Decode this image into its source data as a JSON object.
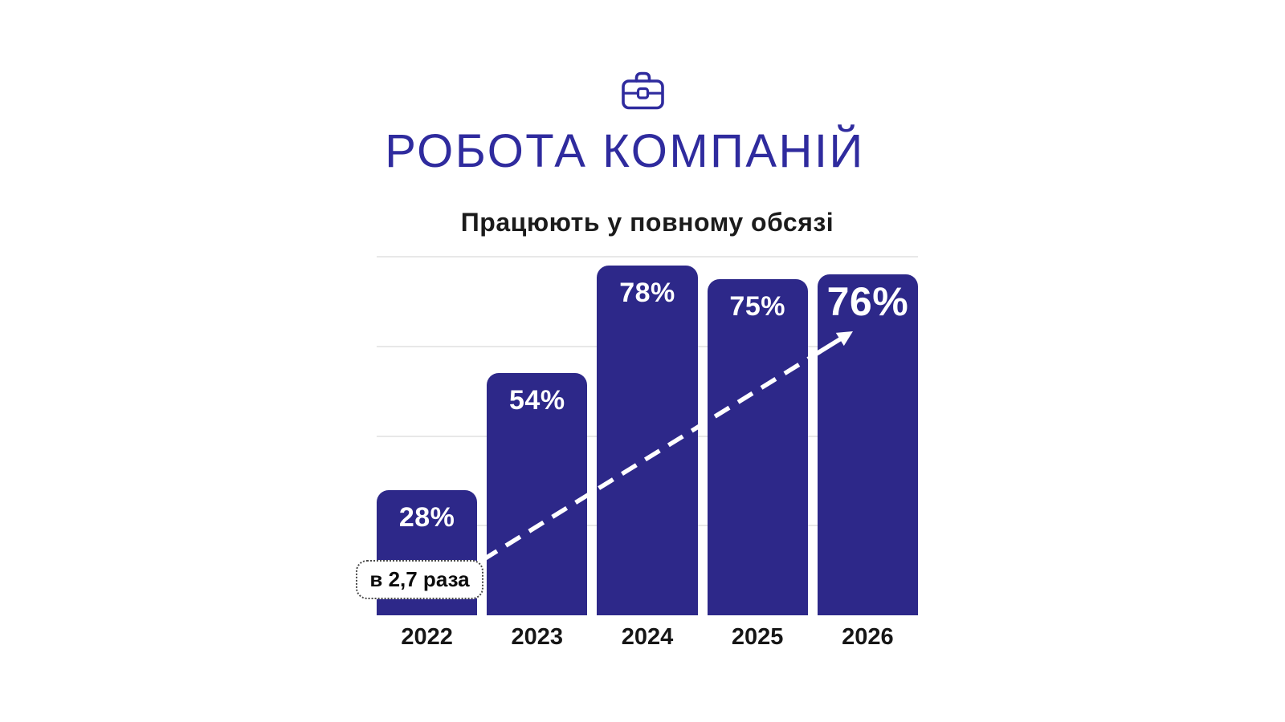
{
  "header": {
    "icon": "briefcase-icon",
    "title": "РОБОТА КОМПАНІЙ",
    "title_color": "#2f2b9e"
  },
  "chart_data": {
    "type": "bar",
    "title": "Працюють у повному обсязі",
    "categories": [
      "2022",
      "2023",
      "2024",
      "2025",
      "2026"
    ],
    "values": [
      28,
      54,
      78,
      75,
      76
    ],
    "labels": [
      "28%",
      "54%",
      "78%",
      "75%",
      "76%"
    ],
    "emphasized_index": 4,
    "unit": "%",
    "ylim": [
      0,
      80
    ],
    "gridlines_pct": [
      20,
      40,
      60,
      80
    ],
    "grid_on": true,
    "legend": "none",
    "xlabel": "",
    "ylabel": "",
    "bar_color": "#2d2889",
    "grid_color": "#e8e8e8",
    "value_label_color": "#ffffff",
    "axis_label_color": "#161616",
    "annotation": "в 2,7 раза",
    "trend_arrow": {
      "style": "dashed",
      "color": "#ffffff",
      "from": "annotation box near 2022 bar",
      "to": "top of 2026 bar"
    }
  }
}
